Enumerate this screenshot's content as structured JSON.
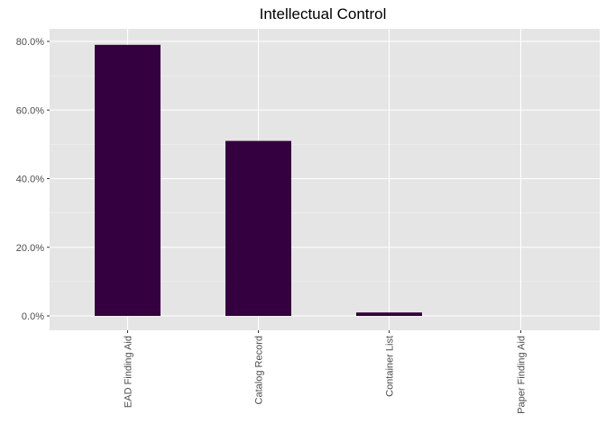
{
  "chart_data": {
    "type": "bar",
    "title": "Intellectual Control",
    "xlabel": "",
    "ylabel": "",
    "categories": [
      "EAD Finding Aid",
      "Catalog Record",
      "Container List",
      "Paper Finding Aid"
    ],
    "values": [
      79.0,
      51.0,
      1.0,
      0.0
    ],
    "y_unit": "percent",
    "ylim": [
      0,
      82
    ],
    "y_ticks": [
      0,
      20,
      40,
      60,
      80
    ],
    "y_tick_labels": [
      "0.0%",
      "20.0%",
      "40.0%",
      "60.0%",
      "80.0%"
    ],
    "grid": true,
    "legend": "none",
    "colors": {
      "bar": "#35003f",
      "panel_background": "#e5e5e5",
      "grid_major": "#ffffff",
      "grid_minor": "#f2f2f2"
    }
  }
}
